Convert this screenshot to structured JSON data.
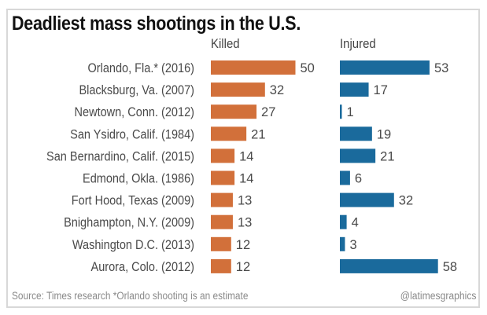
{
  "chart_data": {
    "type": "bar",
    "title": "Deadliest mass shootings in the U.S.",
    "categories": [
      "Orlando, Fla.* (2016)",
      "Blacksburg, Va. (2007)",
      "Newtown, Conn. (2012)",
      "San Ysidro, Calif. (1984)",
      "San Bernardino, Calif. (2015)",
      "Edmond, Okla. (1986)",
      "Fort Hood, Texas (2009)",
      "Bnighampton, N.Y. (2009)",
      "Washington D.C. (2013)",
      "Aurora, Colo. (2012)"
    ],
    "series": [
      {
        "name": "Killed",
        "color": "#d2703a",
        "values": [
          50,
          32,
          27,
          21,
          14,
          14,
          13,
          13,
          12,
          12
        ]
      },
      {
        "name": "Injured",
        "color": "#1a6a9c",
        "values": [
          53,
          17,
          1,
          19,
          21,
          6,
          32,
          4,
          3,
          58
        ]
      }
    ],
    "xlabel": "",
    "ylabel": "",
    "grid": false,
    "orientation": "horizontal",
    "source": "Source: Times research *Orlando shooting is an estimate",
    "credit": "@latimesgraphics"
  }
}
